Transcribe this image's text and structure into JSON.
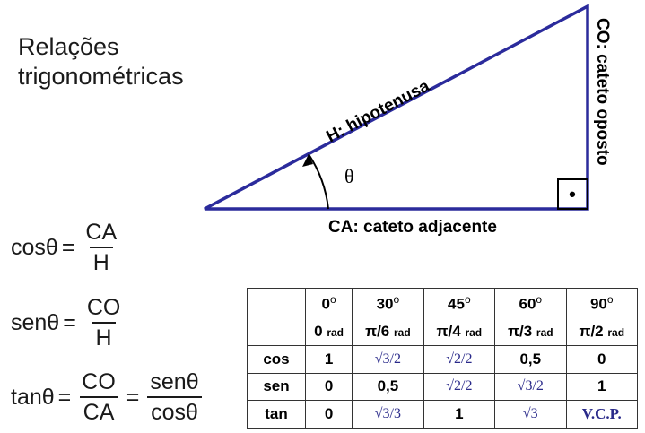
{
  "title": {
    "line1": "Relações",
    "line2": "trigonométricas"
  },
  "triangle": {
    "hypotenuse_label": "H: hipotenusa",
    "adjacent_label": "CA: cateto adjacente",
    "opposite_label": "CO: cateto oposto",
    "angle_label": "θ",
    "right_angle_mark": "•",
    "stroke_color": "#2b2b9c"
  },
  "formulas": {
    "cos": {
      "lhs": "cosθ",
      "eq": "=",
      "num": "CA",
      "den": "H"
    },
    "sen": {
      "lhs": "senθ",
      "eq": "=",
      "num": "CO",
      "den": "H"
    },
    "tan": {
      "lhs": "tanθ",
      "eq": "=",
      "num": "CO",
      "den": "CA",
      "eq2": "=",
      "num2": "senθ",
      "den2": "cosθ"
    }
  },
  "table": {
    "angles": [
      {
        "deg": "0",
        "deg_sym": "o",
        "rad": "0",
        "unit": "rad"
      },
      {
        "deg": "30",
        "deg_sym": "o",
        "rad": "π/6",
        "unit": "rad"
      },
      {
        "deg": "45",
        "deg_sym": "o",
        "rad": "π/4",
        "unit": "rad"
      },
      {
        "deg": "60",
        "deg_sym": "o",
        "rad": "π/3",
        "unit": "rad"
      },
      {
        "deg": "90",
        "deg_sym": "o",
        "rad": "π/2",
        "unit": "rad"
      }
    ],
    "rows": [
      {
        "name": "cos",
        "values": [
          "1",
          "√3/2",
          "√2/2",
          "0,5",
          "0"
        ]
      },
      {
        "name": "sen",
        "values": [
          "0",
          "0,5",
          "√2/2",
          "√3/2",
          "1"
        ]
      },
      {
        "name": "tan",
        "values": [
          "0",
          "√3/3",
          "1",
          "√3",
          "V.C.P."
        ]
      }
    ],
    "radical_color": "#2a2a8a"
  }
}
